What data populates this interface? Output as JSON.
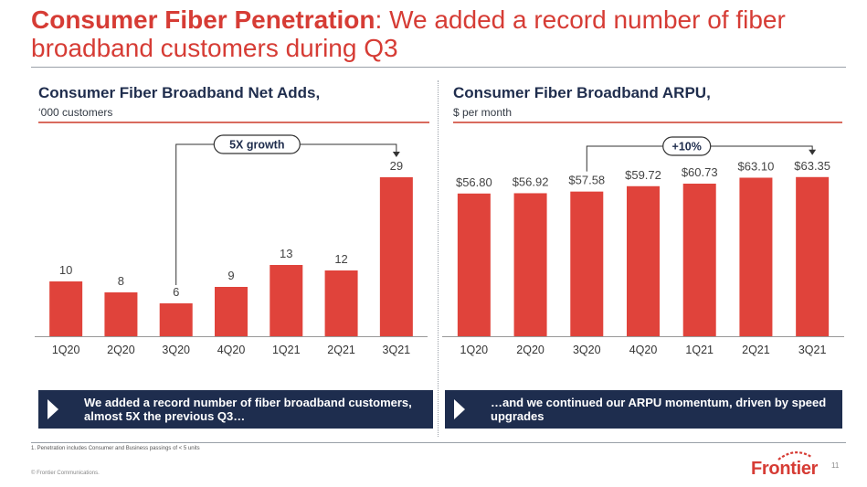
{
  "title": {
    "bold": "Consumer Fiber Penetration",
    "rest": ": We added a record number of fiber broadband customers during Q3"
  },
  "colors": {
    "bar": "#e0433b",
    "navy": "#1e2d4e",
    "accent": "#d63c35"
  },
  "chart_data": [
    {
      "type": "bar",
      "title": "Consumer Fiber Broadband Net Adds,",
      "subtitle": "‘000 customers",
      "categories": [
        "1Q20",
        "2Q20",
        "3Q20",
        "4Q20",
        "1Q21",
        "2Q21",
        "3Q21"
      ],
      "values": [
        10,
        8,
        6,
        9,
        13,
        12,
        29
      ],
      "data_labels": [
        "10",
        "8",
        "6",
        "9",
        "13",
        "12",
        "29"
      ],
      "ylim": [
        0,
        33
      ],
      "grid": false,
      "annotation": {
        "text": "5X growth",
        "from": "3Q20",
        "to": "3Q21"
      }
    },
    {
      "type": "bar",
      "title": "Consumer Fiber Broadband ARPU,",
      "subtitle": "$ per month",
      "categories": [
        "1Q20",
        "2Q20",
        "3Q20",
        "4Q20",
        "1Q21",
        "2Q21",
        "3Q21"
      ],
      "values": [
        56.8,
        56.92,
        57.58,
        59.72,
        60.73,
        63.1,
        63.35
      ],
      "data_labels": [
        "$56.80",
        "$56.92",
        "$57.58",
        "$59.72",
        "$60.73",
        "$63.10",
        "$63.35"
      ],
      "ylim": [
        0,
        72
      ],
      "grid": false,
      "annotation": {
        "text": "+10%",
        "from": "3Q20",
        "to": "3Q21"
      }
    }
  ],
  "callouts": [
    "We added a record number of fiber broadband customers, almost 5X the previous Q3…",
    "…and we continued our ARPU momentum, driven by speed upgrades"
  ],
  "footnote": "1. Penetration includes Consumer and Business passings of < 5 units",
  "copyright": "© Frontier Communications.",
  "logo_text": "Frontier",
  "page_number": "11"
}
